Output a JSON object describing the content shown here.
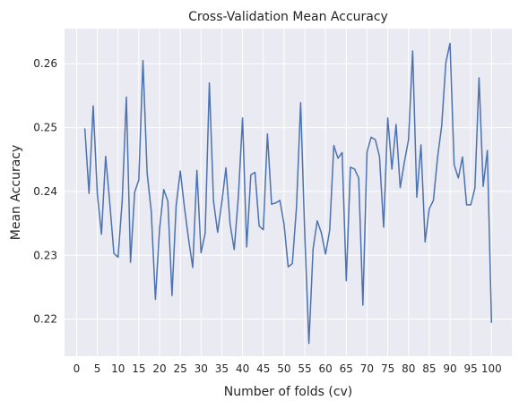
{
  "chart_data": {
    "type": "line",
    "title": "Cross-Validation Mean Accuracy",
    "xlabel": "Number of folds (cv)",
    "ylabel": "Mean Accuracy",
    "xlim": [
      -2.9,
      104.9
    ],
    "ylim": [
      0.2142,
      0.2655
    ],
    "xticks": [
      0,
      5,
      10,
      15,
      20,
      25,
      30,
      35,
      40,
      45,
      50,
      55,
      60,
      65,
      70,
      75,
      80,
      85,
      90,
      95,
      100
    ],
    "yticks": [
      0.22,
      0.23,
      0.24,
      0.25,
      0.26
    ],
    "ytick_labels": [
      "0.22",
      "0.23",
      "0.24",
      "0.25",
      "0.26"
    ],
    "grid": true,
    "background": "#eaeaf2",
    "grid_color": "#ffffff",
    "line_color": "#4c72b0",
    "series": [
      {
        "x": [
          2,
          3,
          4,
          5,
          6,
          7,
          8,
          9,
          10,
          11,
          12,
          13,
          14,
          15,
          16,
          17,
          18,
          19,
          20,
          21,
          22,
          23,
          24,
          25,
          26,
          27,
          28,
          29,
          30,
          31,
          32,
          33,
          34,
          35,
          36,
          37,
          38,
          39,
          40,
          41,
          42,
          43,
          44,
          45,
          46,
          47,
          48,
          49,
          50,
          51,
          52,
          53,
          54,
          55,
          56,
          57,
          58,
          59,
          60,
          61,
          62,
          63,
          64,
          65,
          66,
          67,
          68,
          69,
          70,
          71,
          72,
          73,
          74,
          75,
          76,
          77,
          78,
          79,
          80,
          81,
          82,
          83,
          84,
          85,
          86,
          87,
          88,
          89,
          90,
          91,
          92,
          93,
          94,
          95,
          96,
          97,
          98,
          99,
          100
        ],
        "values": [
          0.2498,
          0.2397,
          0.2534,
          0.2397,
          0.2333,
          0.2455,
          0.2382,
          0.2303,
          0.2297,
          0.2386,
          0.2548,
          0.2289,
          0.2399,
          0.2418,
          0.2605,
          0.2429,
          0.2369,
          0.2231,
          0.2341,
          0.2403,
          0.2385,
          0.2237,
          0.2378,
          0.2432,
          0.2375,
          0.2325,
          0.2281,
          0.2433,
          0.2304,
          0.2335,
          0.257,
          0.2385,
          0.2336,
          0.2383,
          0.2437,
          0.2349,
          0.2309,
          0.2393,
          0.2515,
          0.2313,
          0.2426,
          0.243,
          0.2346,
          0.234,
          0.249,
          0.238,
          0.2382,
          0.2386,
          0.2349,
          0.2282,
          0.2287,
          0.2375,
          0.2539,
          0.2332,
          0.2162,
          0.231,
          0.2354,
          0.2335,
          0.2302,
          0.2339,
          0.2472,
          0.2452,
          0.2461,
          0.226,
          0.2438,
          0.2435,
          0.2421,
          0.2222,
          0.2462,
          0.2485,
          0.2481,
          0.2455,
          0.2344,
          0.2515,
          0.2435,
          0.2505,
          0.2406,
          0.2446,
          0.2481,
          0.262,
          0.2391,
          0.2473,
          0.2321,
          0.2373,
          0.2386,
          0.2453,
          0.2503,
          0.2602,
          0.2632,
          0.2442,
          0.2421,
          0.2454,
          0.2379,
          0.2379,
          0.2405,
          0.2578,
          0.2408,
          0.2464,
          0.2195
        ]
      }
    ]
  }
}
